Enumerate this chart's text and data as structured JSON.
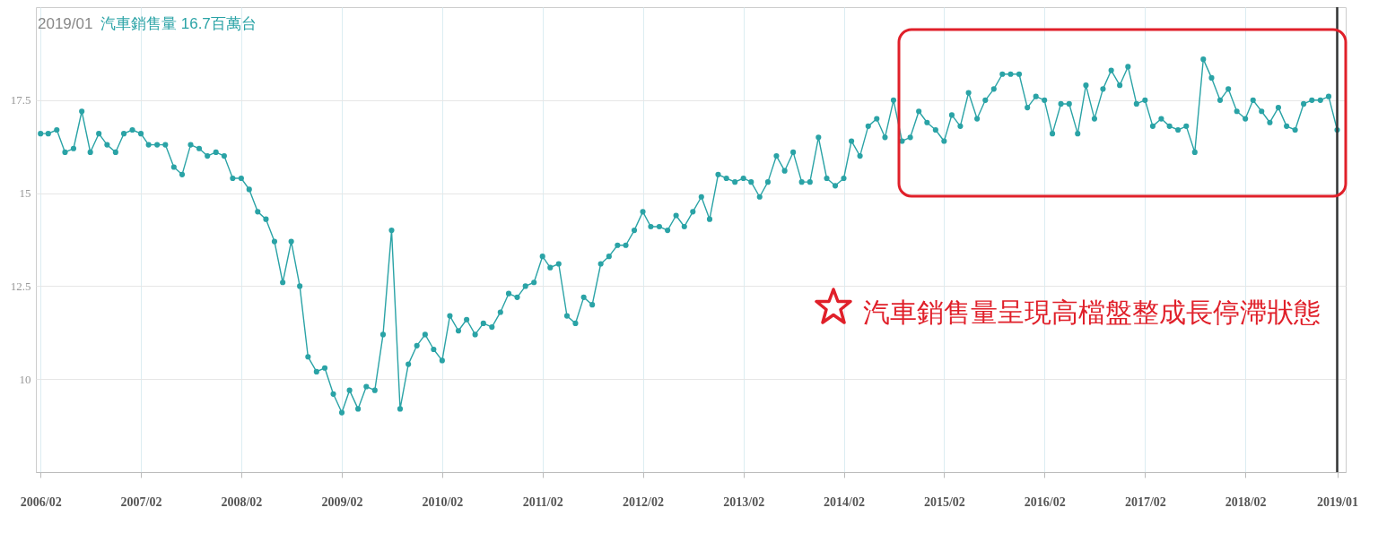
{
  "chart_data": {
    "type": "line",
    "title": "2019/01",
    "subtitle": "汽車銷售量 16.7百萬台",
    "x": [
      "2006-02",
      "2006-03",
      "2006-04",
      "2006-05",
      "2006-06",
      "2006-07",
      "2006-08",
      "2006-09",
      "2006-10",
      "2006-11",
      "2006-12",
      "2007-01",
      "2007-02",
      "2007-03",
      "2007-04",
      "2007-05",
      "2007-06",
      "2007-07",
      "2007-08",
      "2007-09",
      "2007-10",
      "2007-11",
      "2007-12",
      "2008-01",
      "2008-02",
      "2008-03",
      "2008-04",
      "2008-05",
      "2008-06",
      "2008-07",
      "2008-08",
      "2008-09",
      "2008-10",
      "2008-11",
      "2008-12",
      "2009-01",
      "2009-02",
      "2009-03",
      "2009-04",
      "2009-05",
      "2009-06",
      "2009-07",
      "2009-08",
      "2009-09",
      "2009-10",
      "2009-11",
      "2009-12",
      "2010-01",
      "2010-02",
      "2010-03",
      "2010-04",
      "2010-05",
      "2010-06",
      "2010-07",
      "2010-08",
      "2010-09",
      "2010-10",
      "2010-11",
      "2010-12",
      "2011-01",
      "2011-02",
      "2011-03",
      "2011-04",
      "2011-05",
      "2011-06",
      "2011-07",
      "2011-08",
      "2011-09",
      "2011-10",
      "2011-11",
      "2011-12",
      "2012-01",
      "2012-02",
      "2012-03",
      "2012-04",
      "2012-05",
      "2012-06",
      "2012-07",
      "2012-08",
      "2012-09",
      "2012-10",
      "2012-11",
      "2012-12",
      "2013-01",
      "2013-02",
      "2013-03",
      "2013-04",
      "2013-05",
      "2013-06",
      "2013-07",
      "2013-08",
      "2013-09",
      "2013-10",
      "2013-11",
      "2013-12",
      "2014-01",
      "2014-02",
      "2014-03",
      "2014-04",
      "2014-05",
      "2014-06",
      "2014-07",
      "2014-08",
      "2014-09",
      "2014-10",
      "2014-11",
      "2014-12",
      "2015-01",
      "2015-02",
      "2015-03",
      "2015-04",
      "2015-05",
      "2015-06",
      "2015-07",
      "2015-08",
      "2015-09",
      "2015-10",
      "2015-11",
      "2015-12",
      "2016-01",
      "2016-02",
      "2016-03",
      "2016-04",
      "2016-05",
      "2016-06",
      "2016-07",
      "2016-08",
      "2016-09",
      "2016-10",
      "2016-11",
      "2016-12",
      "2017-01",
      "2017-02",
      "2017-03",
      "2017-04",
      "2017-05",
      "2017-06",
      "2017-07",
      "2017-08",
      "2017-09",
      "2017-10",
      "2017-11",
      "2017-12",
      "2018-01",
      "2018-02",
      "2018-03",
      "2018-04",
      "2018-05",
      "2018-06",
      "2018-07",
      "2018-08",
      "2018-09",
      "2018-10",
      "2018-11",
      "2018-12",
      "2019-01"
    ],
    "values": [
      16.6,
      16.6,
      16.7,
      16.1,
      16.2,
      17.2,
      16.1,
      16.6,
      16.3,
      16.1,
      16.6,
      16.7,
      16.6,
      16.3,
      16.3,
      16.3,
      15.7,
      15.5,
      16.3,
      16.2,
      16.0,
      16.1,
      16.0,
      15.4,
      15.4,
      15.1,
      14.5,
      14.3,
      13.7,
      12.6,
      13.7,
      12.5,
      10.6,
      10.2,
      10.3,
      9.6,
      9.1,
      9.7,
      9.2,
      9.8,
      9.7,
      11.2,
      14.0,
      9.2,
      10.4,
      10.9,
      11.2,
      10.8,
      10.5,
      11.7,
      11.3,
      11.6,
      11.2,
      11.5,
      11.4,
      11.8,
      12.3,
      12.2,
      12.5,
      12.6,
      13.3,
      13.0,
      13.1,
      11.7,
      11.5,
      12.2,
      12.0,
      13.1,
      13.3,
      13.6,
      13.6,
      14.0,
      14.5,
      14.1,
      14.1,
      14.0,
      14.4,
      14.1,
      14.5,
      14.9,
      14.3,
      15.5,
      15.4,
      15.3,
      15.4,
      15.3,
      14.9,
      15.3,
      16.0,
      15.6,
      16.1,
      15.3,
      15.3,
      16.5,
      15.4,
      15.2,
      15.4,
      16.4,
      16.0,
      16.8,
      17.0,
      16.5,
      17.5,
      16.4,
      16.5,
      17.2,
      16.9,
      16.7,
      16.4,
      17.1,
      16.8,
      17.7,
      17.0,
      17.5,
      17.8,
      18.2,
      18.2,
      18.2,
      17.3,
      17.6,
      17.5,
      16.6,
      17.4,
      17.4,
      16.6,
      17.9,
      17.0,
      17.8,
      18.3,
      17.9,
      18.4,
      17.4,
      17.5,
      16.8,
      17.0,
      16.8,
      16.7,
      16.8,
      16.1,
      18.6,
      18.1,
      17.5,
      17.8,
      17.2,
      17.0,
      17.5,
      17.2,
      16.9,
      17.3,
      16.8,
      16.7,
      17.4,
      17.5,
      17.5,
      17.6,
      16.7
    ],
    "color": "#2aa3a6",
    "marker": "circle",
    "line_style": "solid",
    "grid": true,
    "xlim": [
      "2006-01-15",
      "2019-02-01"
    ],
    "xticks": [
      {
        "value": "2006-02",
        "label": "2006/02"
      },
      {
        "value": "2007-02",
        "label": "2007/02"
      },
      {
        "value": "2008-02",
        "label": "2008/02"
      },
      {
        "value": "2009-02",
        "label": "2009/02"
      },
      {
        "value": "2010-02",
        "label": "2010/02"
      },
      {
        "value": "2011-02",
        "label": "2011/02"
      },
      {
        "value": "2012-02",
        "label": "2012/02"
      },
      {
        "value": "2013-02",
        "label": "2013/02"
      },
      {
        "value": "2014-02",
        "label": "2014/02"
      },
      {
        "value": "2015-02",
        "label": "2015/02"
      },
      {
        "value": "2016-02",
        "label": "2016/02"
      },
      {
        "value": "2017-02",
        "label": "2017/02"
      },
      {
        "value": "2018-02",
        "label": "2018/02"
      },
      {
        "value": "2019-01",
        "label": "2019/01"
      }
    ],
    "ylim": [
      7.5,
      20
    ],
    "yticks": [
      10,
      12.5,
      15,
      17.5
    ],
    "ref_lines": [
      {
        "axis": "x",
        "value": "2019-01",
        "color": "#333333"
      }
    ],
    "annotations": [
      "汽車銷售量呈現高檔盤整成長停滯狀態"
    ]
  }
}
